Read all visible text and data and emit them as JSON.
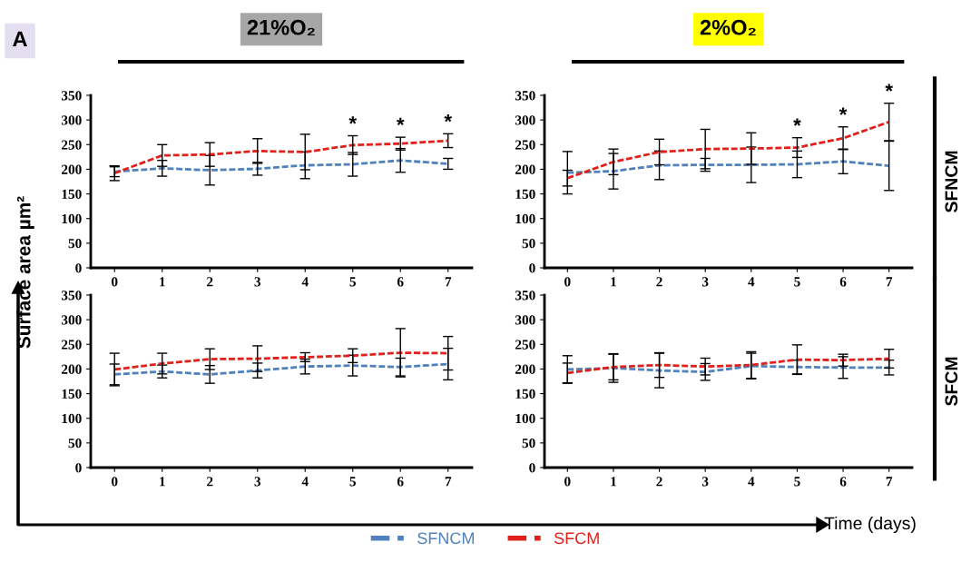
{
  "chart_data": [
    {
      "type": "line",
      "title": "21%O₂",
      "ylabel": "Surface area µm²",
      "categories": [
        "0",
        "1",
        "2",
        "3",
        "4",
        "5",
        "6",
        "7"
      ],
      "ylim": [
        0,
        350
      ],
      "yticks": [
        0,
        50,
        100,
        150,
        200,
        250,
        300,
        350
      ],
      "grid": false,
      "legend": "bottom",
      "marker": "none",
      "line_style": "dashed",
      "annotations": [
        "A",
        {
          "text": "*",
          "x": "5",
          "y": 268
        },
        {
          "text": "*",
          "x": "6",
          "y": 265
        },
        {
          "text": "*",
          "x": "7",
          "y": 272
        }
      ],
      "series": [
        {
          "name": "SFNCM",
          "color": "#4f81bd",
          "values": [
            195,
            202,
            198,
            201,
            208,
            210,
            218,
            211
          ],
          "errors": [
            10,
            16,
            30,
            13,
            27,
            24,
            24,
            11
          ]
        },
        {
          "name": "SFCM",
          "color": "#e0201b",
          "values": [
            192,
            228,
            230,
            237,
            235,
            249,
            252,
            258
          ],
          "errors": [
            15,
            22,
            24,
            25,
            36,
            19,
            13,
            14
          ]
        }
      ]
    },
    {
      "type": "line",
      "title": "2%O₂",
      "categories": [
        "0",
        "1",
        "2",
        "3",
        "4",
        "5",
        "6",
        "7"
      ],
      "ylim": [
        0,
        350
      ],
      "yticks": [
        0,
        50,
        100,
        150,
        200,
        250,
        300,
        350
      ],
      "grid": false,
      "marker": "none",
      "line_style": "dashed",
      "annotations": [
        "SFNCM",
        {
          "text": "*",
          "x": "5",
          "y": 264
        },
        {
          "text": "*",
          "x": "6",
          "y": 286
        },
        {
          "text": "*",
          "x": "7",
          "y": 334
        }
      ],
      "series": [
        {
          "color": "#4f81bd",
          "values": [
            193,
            196,
            208,
            209,
            209,
            210,
            216,
            207
          ],
          "errors": [
            43,
            36,
            29,
            13,
            36,
            27,
            25,
            50
          ]
        },
        {
          "color": "#e0201b",
          "values": [
            182,
            215,
            235,
            241,
            242,
            244,
            263,
            296
          ],
          "errors": [
            16,
            26,
            26,
            40,
            32,
            20,
            23,
            38
          ]
        }
      ]
    },
    {
      "type": "line",
      "categories": [
        "0",
        "1",
        "2",
        "3",
        "4",
        "5",
        "6",
        "7"
      ],
      "ylim": [
        0,
        350
      ],
      "yticks": [
        0,
        50,
        100,
        150,
        200,
        250,
        300,
        350
      ],
      "grid": false,
      "marker": "none",
      "line_style": "dashed",
      "series": [
        {
          "color": "#4f81bd",
          "values": [
            189,
            195,
            189,
            197,
            205,
            207,
            204,
            210
          ],
          "errors": [
            21,
            13,
            18,
            15,
            15,
            21,
            18,
            32
          ]
        },
        {
          "color": "#e0201b",
          "values": [
            199,
            211,
            220,
            221,
            224,
            227,
            233,
            232
          ],
          "errors": [
            33,
            21,
            21,
            26,
            9,
            14,
            49,
            34
          ]
        }
      ]
    },
    {
      "type": "line",
      "xlabel": "Time (days)",
      "categories": [
        "0",
        "1",
        "2",
        "3",
        "4",
        "5",
        "6",
        "7"
      ],
      "ylim": [
        0,
        350
      ],
      "yticks": [
        0,
        50,
        100,
        150,
        200,
        250,
        300,
        350
      ],
      "grid": false,
      "marker": "none",
      "line_style": "dashed",
      "annotations": [
        "SFCM"
      ],
      "series": [
        {
          "color": "#4f81bd",
          "values": [
            199,
            202,
            197,
            194,
            206,
            204,
            203,
            203
          ],
          "errors": [
            28,
            29,
            35,
            17,
            26,
            14,
            22,
            15
          ]
        },
        {
          "color": "#e0201b",
          "values": [
            192,
            204,
            208,
            205,
            208,
            219,
            218,
            221
          ],
          "errors": [
            20,
            26,
            25,
            17,
            27,
            30,
            12,
            19
          ]
        }
      ]
    }
  ]
}
